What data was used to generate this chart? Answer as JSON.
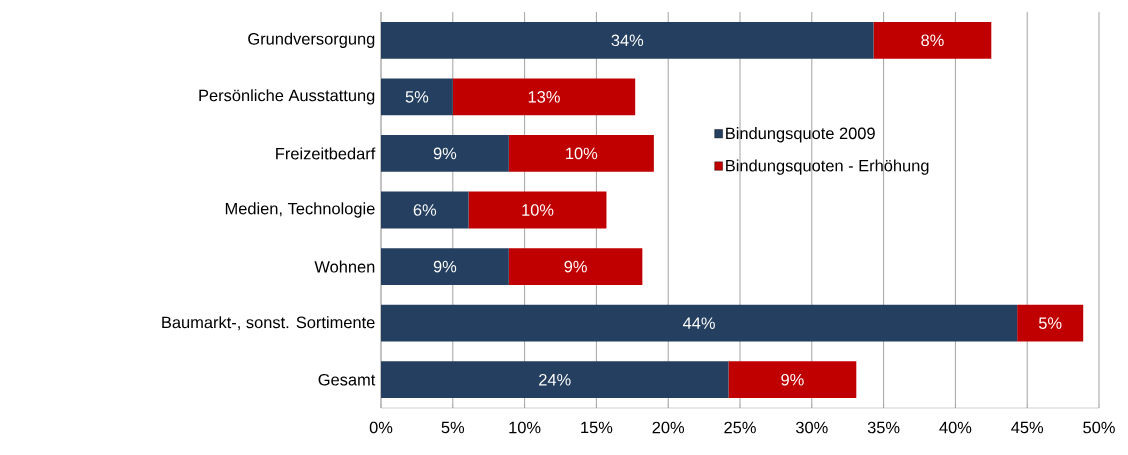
{
  "chart_data": {
    "type": "bar",
    "orientation": "horizontal",
    "stacked": true,
    "categories": [
      "Grundversorgung",
      "Persönliche Ausstattung",
      "Freizeitbedarf",
      "Medien, Technologie",
      "Wohnen",
      "Baumarkt-, sonst. Sortimente",
      "Gesamt"
    ],
    "series": [
      {
        "name": "Bindungsquote 2009",
        "color": "#243f60",
        "values": [
          34.3,
          5.0,
          8.9,
          6.1,
          8.9,
          44.3,
          24.2
        ],
        "value_labels": [
          "34%",
          "5%",
          "9%",
          "6%",
          "9%",
          "44%",
          "24%"
        ]
      },
      {
        "name": "Bindungsquoten - Erhöhung",
        "color": "#c00000",
        "values": [
          8.2,
          12.7,
          10.1,
          9.6,
          9.3,
          4.6,
          8.9
        ],
        "value_labels": [
          "8%",
          "13%",
          "10%",
          "10%",
          "9%",
          "5%",
          "9%"
        ]
      }
    ],
    "xlim": [
      0,
      50
    ],
    "xticks": [
      {
        "value": 0,
        "label": "0%"
      },
      {
        "value": 5,
        "label": "5%"
      },
      {
        "value": 10,
        "label": "10%"
      },
      {
        "value": 15,
        "label": "15%"
      },
      {
        "value": 20,
        "label": "20%"
      },
      {
        "value": 25,
        "label": "25%"
      },
      {
        "value": 30,
        "label": "30%"
      },
      {
        "value": 35,
        "label": "35%"
      },
      {
        "value": 40,
        "label": "40%"
      },
      {
        "value": 45,
        "label": "45%"
      },
      {
        "value": 50,
        "label": "50%"
      }
    ],
    "grid": "x",
    "legend": "right"
  }
}
